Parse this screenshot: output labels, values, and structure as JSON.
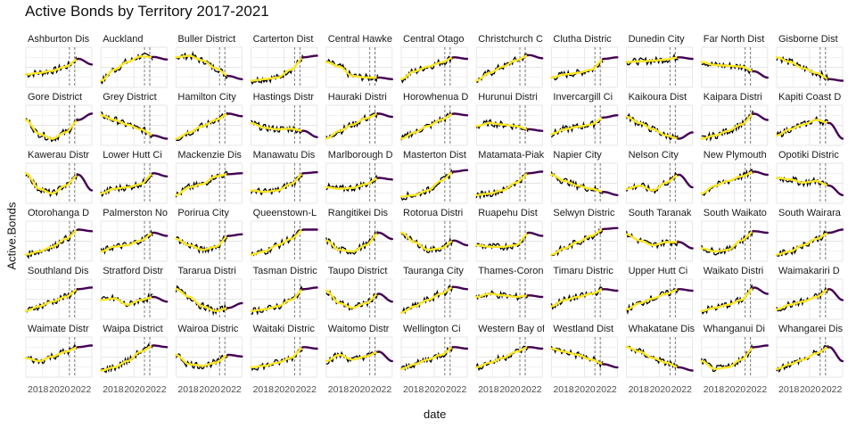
{
  "chart_data": {
    "type": "line",
    "title": "Active Bonds by Territory 2017-2021",
    "xlabel": "date",
    "ylabel": "Active.Bonds",
    "x_ticks": [
      "2018",
      "2020",
      "2022"
    ],
    "grid": true,
    "legend": "none",
    "facet_ncol": 11,
    "facet_nrow": 6,
    "colors": {
      "observed": "#000000",
      "trend": "#fde725",
      "forecast": "#440154",
      "vline": "#7f7f7f",
      "grid": "#e5e5e5"
    },
    "panel_shape_note": "y values per panel are relative (0-1) estimates of the drawn curve at yearly steps 2017-2022",
    "panels": [
      {
        "label": "Ashburton Dis",
        "values": [
          0.3,
          0.35,
          0.42,
          0.55,
          0.8,
          0.62
        ]
      },
      {
        "label": "Auckland",
        "values": [
          0.1,
          0.45,
          0.7,
          0.88,
          0.86,
          0.78
        ]
      },
      {
        "label": "Buller District",
        "values": [
          0.85,
          0.9,
          0.75,
          0.5,
          0.25,
          0.15
        ]
      },
      {
        "label": "Carterton Dist",
        "values": [
          0.1,
          0.15,
          0.2,
          0.45,
          0.85,
          0.9
        ]
      },
      {
        "label": "Central Hawke",
        "values": [
          0.7,
          0.55,
          0.25,
          0.2,
          0.2,
          0.15
        ]
      },
      {
        "label": "Central Otago",
        "values": [
          0.15,
          0.4,
          0.55,
          0.68,
          0.85,
          0.8
        ]
      },
      {
        "label": "Christchurch C",
        "values": [
          0.1,
          0.35,
          0.55,
          0.75,
          0.92,
          0.82
        ]
      },
      {
        "label": "Clutha Distric",
        "values": [
          0.2,
          0.3,
          0.35,
          0.45,
          0.8,
          0.85
        ]
      },
      {
        "label": "Dunedin City",
        "values": [
          0.7,
          0.72,
          0.74,
          0.78,
          0.85,
          0.8
        ]
      },
      {
        "label": "Far North Dist",
        "values": [
          0.7,
          0.6,
          0.58,
          0.55,
          0.4,
          0.2
        ]
      },
      {
        "label": "Gisborne Dist",
        "values": [
          0.85,
          0.7,
          0.5,
          0.35,
          0.15,
          0.1
        ]
      },
      {
        "label": "Gore District",
        "values": [
          0.7,
          0.25,
          0.1,
          0.3,
          0.7,
          0.9
        ]
      },
      {
        "label": "Grey District",
        "values": [
          0.85,
          0.7,
          0.55,
          0.4,
          0.2,
          0.1
        ]
      },
      {
        "label": "Hamilton City",
        "values": [
          0.1,
          0.3,
          0.5,
          0.7,
          0.9,
          0.82
        ]
      },
      {
        "label": "Hastings Distr",
        "values": [
          0.6,
          0.45,
          0.4,
          0.42,
          0.35,
          0.15
        ]
      },
      {
        "label": "Hauraki Distri",
        "values": [
          0.1,
          0.35,
          0.55,
          0.75,
          0.9,
          0.8
        ]
      },
      {
        "label": "Horowhenua D",
        "values": [
          0.1,
          0.3,
          0.5,
          0.7,
          0.9,
          0.85
        ]
      },
      {
        "label": "Hurunui Distri",
        "values": [
          0.5,
          0.6,
          0.55,
          0.5,
          0.4,
          0.35
        ]
      },
      {
        "label": "Invercargill Ci",
        "values": [
          0.25,
          0.4,
          0.48,
          0.55,
          0.78,
          0.85
        ]
      },
      {
        "label": "Kaikoura Dist",
        "values": [
          0.8,
          0.6,
          0.4,
          0.2,
          0.1,
          0.3
        ]
      },
      {
        "label": "Kaipara Distri",
        "values": [
          0.1,
          0.2,
          0.35,
          0.55,
          0.9,
          0.7
        ]
      },
      {
        "label": "Kapiti Coast D",
        "values": [
          0.2,
          0.4,
          0.55,
          0.7,
          0.6,
          0.1
        ]
      },
      {
        "label": "Kawerau Distr",
        "values": [
          0.85,
          0.35,
          0.2,
          0.45,
          0.8,
          0.3
        ]
      },
      {
        "label": "Lower Hutt Ci",
        "values": [
          0.2,
          0.35,
          0.4,
          0.5,
          0.85,
          0.75
        ]
      },
      {
        "label": "Mackenzie Dis",
        "values": [
          0.15,
          0.4,
          0.5,
          0.75,
          0.82,
          0.85
        ]
      },
      {
        "label": "Manawatu Dis",
        "values": [
          0.3,
          0.25,
          0.3,
          0.5,
          0.85,
          0.88
        ]
      },
      {
        "label": "Marlborough D",
        "values": [
          0.4,
          0.35,
          0.38,
          0.5,
          0.7,
          0.65
        ]
      },
      {
        "label": "Masterton Dist",
        "values": [
          0.1,
          0.15,
          0.3,
          0.6,
          0.9,
          0.95
        ]
      },
      {
        "label": "Matamata-Piak",
        "values": [
          0.15,
          0.2,
          0.3,
          0.55,
          0.85,
          0.9
        ]
      },
      {
        "label": "Napier City",
        "values": [
          0.8,
          0.6,
          0.45,
          0.35,
          0.25,
          0.15
        ]
      },
      {
        "label": "Nelson City",
        "values": [
          0.35,
          0.45,
          0.3,
          0.55,
          0.8,
          0.4
        ]
      },
      {
        "label": "New Plymouth",
        "values": [
          0.2,
          0.45,
          0.6,
          0.75,
          0.9,
          0.8
        ]
      },
      {
        "label": "Opotiki Distric",
        "values": [
          0.7,
          0.65,
          0.55,
          0.6,
          0.45,
          0.15
        ]
      },
      {
        "label": "Otorohanga D",
        "values": [
          0.1,
          0.2,
          0.35,
          0.6,
          0.9,
          0.85
        ]
      },
      {
        "label": "Palmerston No",
        "values": [
          0.2,
          0.35,
          0.4,
          0.55,
          0.8,
          0.7
        ]
      },
      {
        "label": "Porirua City",
        "values": [
          0.6,
          0.4,
          0.25,
          0.35,
          0.7,
          0.75
        ]
      },
      {
        "label": "Queenstown-L",
        "values": [
          0.1,
          0.2,
          0.4,
          0.6,
          0.9,
          0.9
        ]
      },
      {
        "label": "Rangitikei Dis",
        "values": [
          0.55,
          0.25,
          0.2,
          0.4,
          0.8,
          0.6
        ]
      },
      {
        "label": "Rotorua Distri",
        "values": [
          0.8,
          0.5,
          0.25,
          0.3,
          0.55,
          0.4
        ]
      },
      {
        "label": "Ruapehu Dist",
        "values": [
          0.4,
          0.35,
          0.35,
          0.4,
          0.8,
          0.7
        ]
      },
      {
        "label": "Selwyn Distric",
        "values": [
          0.1,
          0.3,
          0.5,
          0.7,
          0.92,
          0.95
        ]
      },
      {
        "label": "South Taranak",
        "values": [
          0.75,
          0.55,
          0.4,
          0.5,
          0.5,
          0.3
        ]
      },
      {
        "label": "South Waikato",
        "values": [
          0.3,
          0.2,
          0.25,
          0.55,
          0.85,
          0.8
        ]
      },
      {
        "label": "South Wairara",
        "values": [
          0.1,
          0.2,
          0.4,
          0.6,
          0.8,
          0.9
        ]
      },
      {
        "label": "Southland Dis",
        "values": [
          0.15,
          0.3,
          0.45,
          0.6,
          0.85,
          0.9
        ]
      },
      {
        "label": "Stratford Distr",
        "values": [
          0.5,
          0.55,
          0.35,
          0.5,
          0.6,
          0.45
        ]
      },
      {
        "label": "Tararua Distri",
        "values": [
          0.85,
          0.6,
          0.3,
          0.15,
          0.25,
          0.4
        ]
      },
      {
        "label": "Tasman Distric",
        "values": [
          0.15,
          0.2,
          0.3,
          0.5,
          0.85,
          0.9
        ]
      },
      {
        "label": "Taupo District",
        "values": [
          0.8,
          0.4,
          0.25,
          0.4,
          0.7,
          0.45
        ]
      },
      {
        "label": "Tauranga City",
        "values": [
          0.1,
          0.3,
          0.5,
          0.7,
          0.92,
          0.85
        ]
      },
      {
        "label": "Thames-Coron",
        "values": [
          0.6,
          0.7,
          0.65,
          0.6,
          0.65,
          0.6
        ]
      },
      {
        "label": "Timaru Distric",
        "values": [
          0.3,
          0.5,
          0.6,
          0.7,
          0.85,
          0.8
        ]
      },
      {
        "label": "Upper Hutt Ci",
        "values": [
          0.2,
          0.4,
          0.55,
          0.7,
          0.85,
          0.8
        ]
      },
      {
        "label": "Waikato Distri",
        "values": [
          0.15,
          0.25,
          0.35,
          0.5,
          0.9,
          0.7
        ]
      },
      {
        "label": "Waimakariri D",
        "values": [
          0.2,
          0.35,
          0.45,
          0.6,
          0.85,
          0.5
        ]
      },
      {
        "label": "Waimate Distr",
        "values": [
          0.5,
          0.4,
          0.55,
          0.7,
          0.85,
          0.9
        ]
      },
      {
        "label": "Waipa District",
        "values": [
          0.1,
          0.2,
          0.4,
          0.7,
          0.9,
          0.85
        ]
      },
      {
        "label": "Wairoa Distric",
        "values": [
          0.6,
          0.3,
          0.25,
          0.35,
          0.6,
          0.55
        ]
      },
      {
        "label": "Waitaki Distric",
        "values": [
          0.2,
          0.25,
          0.35,
          0.5,
          0.85,
          0.8
        ]
      },
      {
        "label": "Waitomo Distr",
        "values": [
          0.4,
          0.6,
          0.45,
          0.55,
          0.7,
          0.4
        ]
      },
      {
        "label": "Wellington Ci",
        "values": [
          0.15,
          0.3,
          0.45,
          0.6,
          0.85,
          0.8
        ]
      },
      {
        "label": "Western Bay of",
        "values": [
          0.2,
          0.35,
          0.5,
          0.7,
          0.85,
          0.8
        ]
      },
      {
        "label": "Westland Dist",
        "values": [
          0.8,
          0.7,
          0.6,
          0.45,
          0.3,
          0.2
        ]
      },
      {
        "label": "Whakatane Dis",
        "values": [
          0.85,
          0.7,
          0.5,
          0.35,
          0.2,
          0.1
        ]
      },
      {
        "label": "Whanganui Di",
        "values": [
          0.4,
          0.15,
          0.2,
          0.45,
          0.85,
          0.9
        ]
      },
      {
        "label": "Whangarei Dis",
        "values": [
          0.15,
          0.3,
          0.45,
          0.65,
          0.85,
          0.4
        ]
      }
    ]
  }
}
